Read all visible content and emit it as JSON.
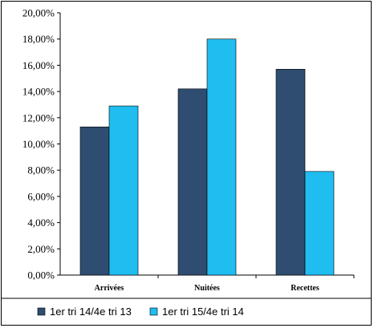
{
  "chart_data": {
    "type": "bar",
    "categories": [
      "Arrivées",
      "Nuitées",
      "Recettes"
    ],
    "series": [
      {
        "name": "1er tri 14/4e tri 13",
        "color": "#2e4d70",
        "values": [
          11.3,
          14.2,
          15.7
        ]
      },
      {
        "name": "1er tri 15/4e tri 14",
        "color": "#1fbdf0",
        "values": [
          12.9,
          18.0,
          7.9
        ]
      }
    ],
    "ylim": [
      0,
      20
    ],
    "yticks": [
      0,
      2,
      4,
      6,
      8,
      10,
      12,
      14,
      16,
      18,
      20
    ],
    "ytick_labels": [
      "0,00%",
      "2,00%",
      "4,00%",
      "6,00%",
      "8,00%",
      "10,00%",
      "12,00%",
      "14,00%",
      "16,00%",
      "18,00%",
      "20,00%"
    ],
    "title": "",
    "xlabel": "",
    "ylabel": "",
    "grid": false,
    "legend_position": "bottom"
  }
}
